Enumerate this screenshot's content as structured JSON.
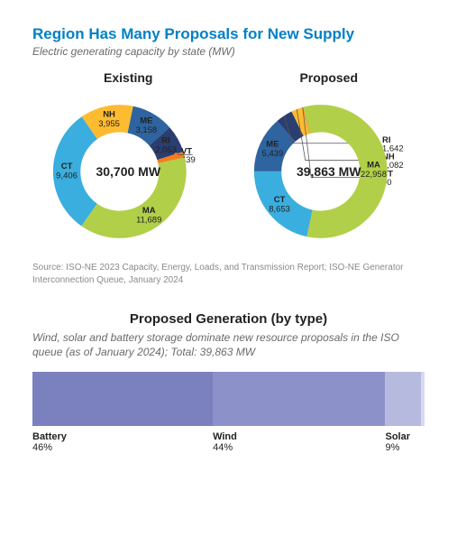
{
  "title": "Region Has Many Proposals for New Supply",
  "subtitle": "Electric generating capacity by state (MW)",
  "title_color": "#0081c6",
  "source": "Source: ISO-NE 2023 Capacity, Energy, Loads, and Transmission Report; ISO-NE Generator Interconnection Queue, January 2024",
  "colors": {
    "CT": "#3aaede",
    "NH": "#fdbb30",
    "ME": "#2e64a0",
    "RI": "#2a3e6f",
    "VT": "#f57c1f",
    "MA": "#b1cf49"
  },
  "donuts": {
    "existing": {
      "title": "Existing",
      "center": "30,700 MW",
      "total": 30700,
      "start_angle": -145,
      "slices": [
        {
          "key": "CT",
          "label": "CT",
          "value": 9406,
          "display": "9,406"
        },
        {
          "key": "NH",
          "label": "NH",
          "value": 3955,
          "display": "3,955"
        },
        {
          "key": "ME",
          "label": "ME",
          "value": 3158,
          "display": "3,158"
        },
        {
          "key": "RI",
          "label": "RI",
          "value": 2053,
          "display": "2,053"
        },
        {
          "key": "VT",
          "label": "VT",
          "value": 439,
          "display": "439",
          "callout": true
        },
        {
          "key": "MA",
          "label": "MA",
          "value": 11689,
          "display": "11,689"
        }
      ]
    },
    "proposed": {
      "title": "Proposed",
      "center": "39,863 MW",
      "total": 39863,
      "start_angle": -168,
      "slices": [
        {
          "key": "CT",
          "label": "CT",
          "value": 8653,
          "display": "8,653"
        },
        {
          "key": "ME",
          "label": "ME",
          "value": 5439,
          "display": "5,439"
        },
        {
          "key": "RI",
          "label": "RI",
          "value": 1642,
          "display": "1,642",
          "callout": true
        },
        {
          "key": "NH",
          "label": "NH",
          "value": 1082,
          "display": "1,082",
          "callout": true
        },
        {
          "key": "VT",
          "label": "VT",
          "value": 90,
          "display": "90",
          "callout": true
        },
        {
          "key": "MA",
          "label": "MA",
          "value": 22958,
          "display": "22,958"
        }
      ]
    }
  },
  "bar": {
    "title": "Proposed Generation (by type)",
    "subtitle": "Wind, solar and battery storage dominate new resource proposals in the ISO queue (as of January 2024); Total: 39,863 MW",
    "segments": [
      {
        "label": "Battery",
        "pct": 46,
        "color": "#7b80bf"
      },
      {
        "label": "Wind",
        "pct": 44,
        "color": "#8c91c9"
      },
      {
        "label": "Solar",
        "pct": 9,
        "color": "#b6badf"
      },
      {
        "label": "",
        "pct": 1,
        "color": "#d7d9ee"
      }
    ],
    "labels": [
      {
        "name": "Battery",
        "pct": "46%",
        "width": 46
      },
      {
        "name": "Wind",
        "pct": "44%",
        "width": 44
      },
      {
        "name": "Solar",
        "pct": "9%",
        "width": 10
      }
    ]
  }
}
